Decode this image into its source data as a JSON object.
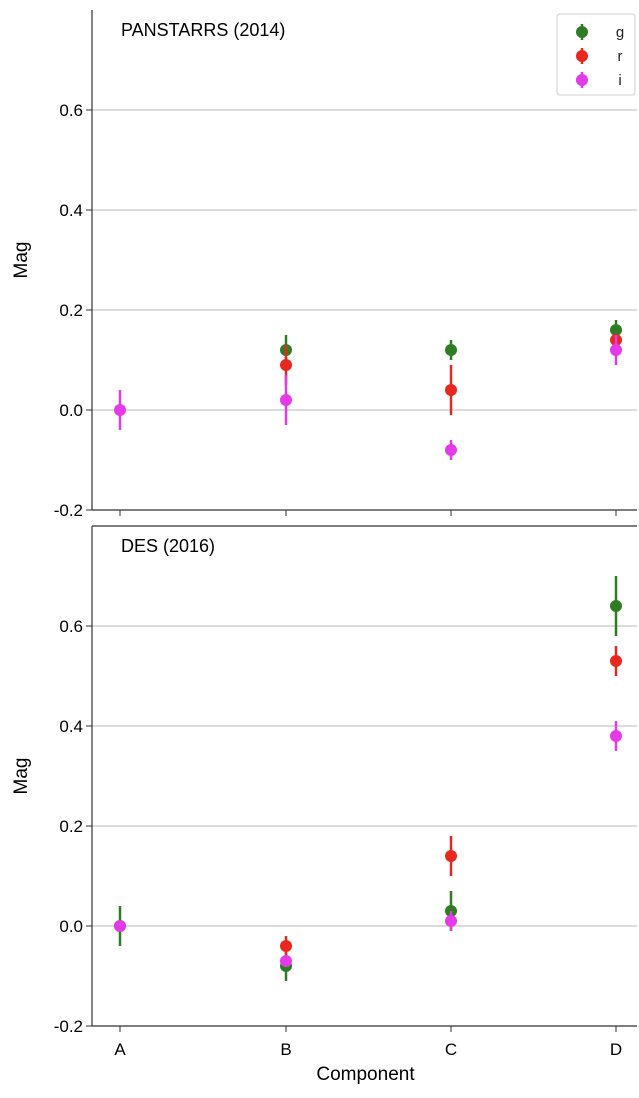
{
  "colors": {
    "g": "#2e7d22",
    "r": "#e8281e",
    "i": "#e43ae8",
    "grid": "#b8b8b8",
    "axis": "#333333"
  },
  "legend": {
    "placement": "top-right",
    "entries": [
      "g",
      "r",
      "i"
    ]
  },
  "chart_data": [
    {
      "type": "scatter",
      "title": "PANSTARRS (2014)",
      "xlabel": "",
      "ylabel": "Mag",
      "categories": [
        "A",
        "B",
        "C",
        "D"
      ],
      "ylim": [
        -0.2,
        0.8
      ],
      "yticks": [
        "-0.2",
        "0.0",
        "0.2",
        "0.4",
        "0.6"
      ],
      "grid": true,
      "series": [
        {
          "name": "g",
          "points": [
            {
              "x": "B",
              "y": 0.12,
              "err": 0.03
            },
            {
              "x": "C",
              "y": 0.12,
              "err": 0.02
            },
            {
              "x": "D",
              "y": 0.16,
              "err": 0.02
            }
          ]
        },
        {
          "name": "r",
          "points": [
            {
              "x": "B",
              "y": 0.09,
              "err": 0.04
            },
            {
              "x": "C",
              "y": 0.04,
              "err": 0.05
            },
            {
              "x": "D",
              "y": 0.14,
              "err": 0.01
            }
          ]
        },
        {
          "name": "i",
          "points": [
            {
              "x": "A",
              "y": 0.0,
              "err": 0.04
            },
            {
              "x": "B",
              "y": 0.02,
              "err": 0.05
            },
            {
              "x": "C",
              "y": -0.08,
              "err": 0.02
            },
            {
              "x": "D",
              "y": 0.12,
              "err": 0.03
            }
          ]
        }
      ]
    },
    {
      "type": "scatter",
      "title": "DES (2016)",
      "xlabel": "Component",
      "ylabel": "Mag",
      "categories": [
        "A",
        "B",
        "C",
        "D"
      ],
      "ylim": [
        -0.2,
        0.8
      ],
      "yticks": [
        "-0.2",
        "0.0",
        "0.2",
        "0.4",
        "0.6"
      ],
      "grid": true,
      "series": [
        {
          "name": "g",
          "points": [
            {
              "x": "A",
              "y": 0.0,
              "err": 0.04
            },
            {
              "x": "B",
              "y": -0.08,
              "err": 0.03
            },
            {
              "x": "C",
              "y": 0.03,
              "err": 0.04
            },
            {
              "x": "D",
              "y": 0.64,
              "err": 0.06
            }
          ]
        },
        {
          "name": "r",
          "points": [
            {
              "x": "B",
              "y": -0.04,
              "err": 0.02
            },
            {
              "x": "C",
              "y": 0.14,
              "err": 0.04
            },
            {
              "x": "D",
              "y": 0.53,
              "err": 0.03
            }
          ]
        },
        {
          "name": "i",
          "points": [
            {
              "x": "A",
              "y": 0.0,
              "err": 0.01
            },
            {
              "x": "B",
              "y": -0.07,
              "err": 0.01
            },
            {
              "x": "C",
              "y": 0.01,
              "err": 0.02
            },
            {
              "x": "D",
              "y": 0.38,
              "err": 0.03
            }
          ]
        }
      ]
    }
  ]
}
